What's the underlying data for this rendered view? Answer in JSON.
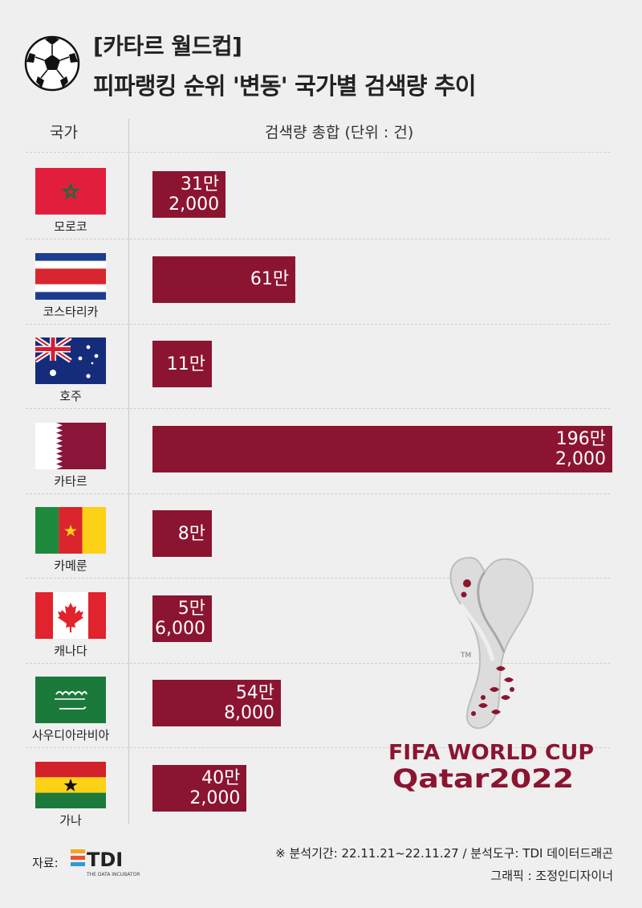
{
  "header": {
    "title_line1": "[카타르 월드컵]",
    "title_line2": "피파랭킹 순위 '변동' 국가별 검색량 추이"
  },
  "columns": {
    "country": "국가",
    "search": "검색량 총합 (단위 : 건)"
  },
  "chart_data": {
    "type": "bar",
    "orientation": "horizontal",
    "title": "피파랭킹 순위 '변동' 국가별 검색량 추이",
    "xlabel": "검색량 총합 (단위 : 건)",
    "ylabel": "국가",
    "categories": [
      "모로코",
      "코스타리카",
      "호주",
      "카타르",
      "카메룬",
      "캐나다",
      "사우디아라비아",
      "가나"
    ],
    "values": [
      312000,
      610000,
      110000,
      1962000,
      80000,
      56000,
      548000,
      402000
    ],
    "labels": [
      [
        "31만",
        "2,000"
      ],
      [
        "61만"
      ],
      [
        "11만"
      ],
      [
        "196만",
        "2,000"
      ],
      [
        "8만"
      ],
      [
        "5만",
        "6,000"
      ],
      [
        "54만",
        "8,000"
      ],
      [
        "40만",
        "2,000"
      ]
    ],
    "bar_color": "#8b1531",
    "grid": false,
    "xlim": [
      0,
      1962000
    ]
  },
  "flags": [
    "morocco-flag-icon",
    "costa-rica-flag-icon",
    "australia-flag-icon",
    "qatar-flag-icon",
    "cameroon-flag-icon",
    "canada-flag-icon",
    "saudi-arabia-flag-icon",
    "ghana-flag-icon"
  ],
  "logo": {
    "line1": "FIFA WORLD CUP",
    "line2": "Qatar2022"
  },
  "footer": {
    "source_label": "자료:",
    "source_brand": "TDI",
    "source_brand_sub": "THE DATA INCUBATOR",
    "note_period": "※ 분석기간: 22.11.21~22.11.27  / 분석도구: TDI 데이터드래곤",
    "note_graphic": "그래픽 : 조정인디자이너"
  }
}
